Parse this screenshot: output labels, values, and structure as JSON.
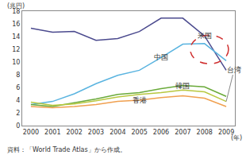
{
  "chart_data": {
    "type": "line",
    "x_label": "(年)",
    "y_label": "(兆円)",
    "source": "資料：「World Trade Atlas」から作成。",
    "x": [
      2000,
      2001,
      2002,
      2003,
      2004,
      2005,
      2006,
      2007,
      2008,
      2009
    ],
    "xlim": [
      1999.6,
      2009.4
    ],
    "xticks": [
      2000,
      2001,
      2002,
      2003,
      2004,
      2005,
      2006,
      2007,
      2008,
      2009
    ],
    "ylim": [
      0,
      18
    ],
    "yticks": [
      0,
      2,
      4,
      6,
      8,
      10,
      12,
      14,
      16,
      18
    ],
    "grid": false,
    "series": [
      {
        "name": "米国",
        "color": "#4b4a8e",
        "values": [
          15.3,
          14.7,
          14.8,
          13.4,
          13.7,
          14.8,
          16.9,
          16.9,
          14.1,
          8.7
        ]
      },
      {
        "name": "中国",
        "color": "#5ab4e0",
        "values": [
          3.3,
          3.8,
          5.0,
          6.6,
          7.9,
          8.7,
          10.7,
          12.8,
          12.9,
          10.2
        ]
      },
      {
        "name": "韓国",
        "color": "#6aaa3a",
        "values": [
          3.3,
          3.0,
          3.6,
          4.2,
          4.9,
          5.2,
          5.8,
          6.3,
          6.1,
          4.6
        ]
      },
      {
        "name": "台湾",
        "color": "#b8c840",
        "values": [
          3.7,
          3.2,
          3.4,
          3.9,
          4.5,
          4.9,
          5.2,
          5.6,
          5.3,
          3.8
        ]
      },
      {
        "name": "香港",
        "color": "#f0a050",
        "values": [
          3.0,
          2.8,
          3.0,
          3.3,
          3.8,
          4.0,
          4.4,
          4.7,
          4.3,
          3.0
        ]
      }
    ]
  }
}
